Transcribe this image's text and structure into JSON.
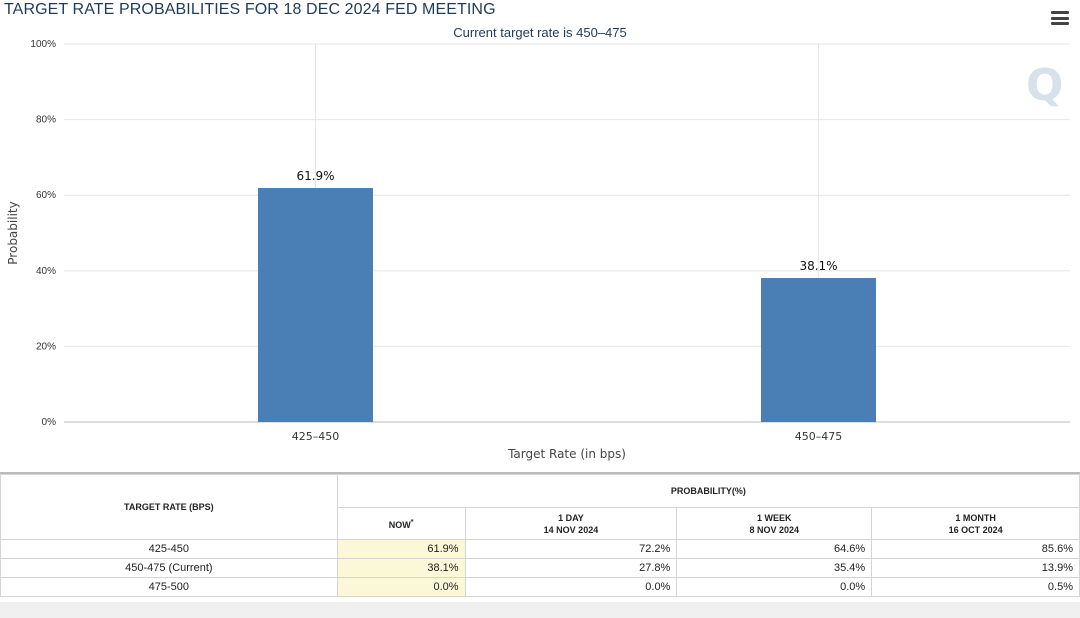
{
  "header": {
    "title": "TARGET RATE PROBABILITIES FOR 18 DEC 2024 FED MEETING",
    "subtitle": "Current target rate is 450–475"
  },
  "colors": {
    "bar": "#4a7fb5",
    "grid": "#e6e6e6",
    "now_cell": "#fbf8d8"
  },
  "chart_data": {
    "type": "bar",
    "categories": [
      "425–450",
      "450–475"
    ],
    "values": [
      61.9,
      38.1
    ],
    "data_labels": [
      "61.9%",
      "38.1%"
    ],
    "xlabel": "Target Rate (in bps)",
    "ylabel": "Probability",
    "ylim": [
      0,
      100
    ],
    "yticks": [
      0,
      20,
      40,
      60,
      80,
      100
    ],
    "ytick_labels": [
      "0%",
      "20%",
      "40%",
      "60%",
      "80%",
      "100%"
    ],
    "grid": true
  },
  "table": {
    "col_header": "TARGET RATE (BPS)",
    "group_header": "PROBABILITY(%)",
    "periods": [
      {
        "label": "NOW",
        "sup": "*",
        "date": ""
      },
      {
        "label": "1 DAY",
        "date": "14 NOV 2024"
      },
      {
        "label": "1 WEEK",
        "date": "8 NOV 2024"
      },
      {
        "label": "1 MONTH",
        "date": "16 OCT 2024"
      }
    ],
    "rows": [
      {
        "rate": "425-450",
        "values": [
          "61.9%",
          "72.2%",
          "64.6%",
          "85.6%"
        ]
      },
      {
        "rate": "450-475 (Current)",
        "values": [
          "38.1%",
          "27.8%",
          "35.4%",
          "13.9%"
        ]
      },
      {
        "rate": "475-500",
        "values": [
          "0.0%",
          "0.0%",
          "0.0%",
          "0.5%"
        ]
      }
    ]
  }
}
